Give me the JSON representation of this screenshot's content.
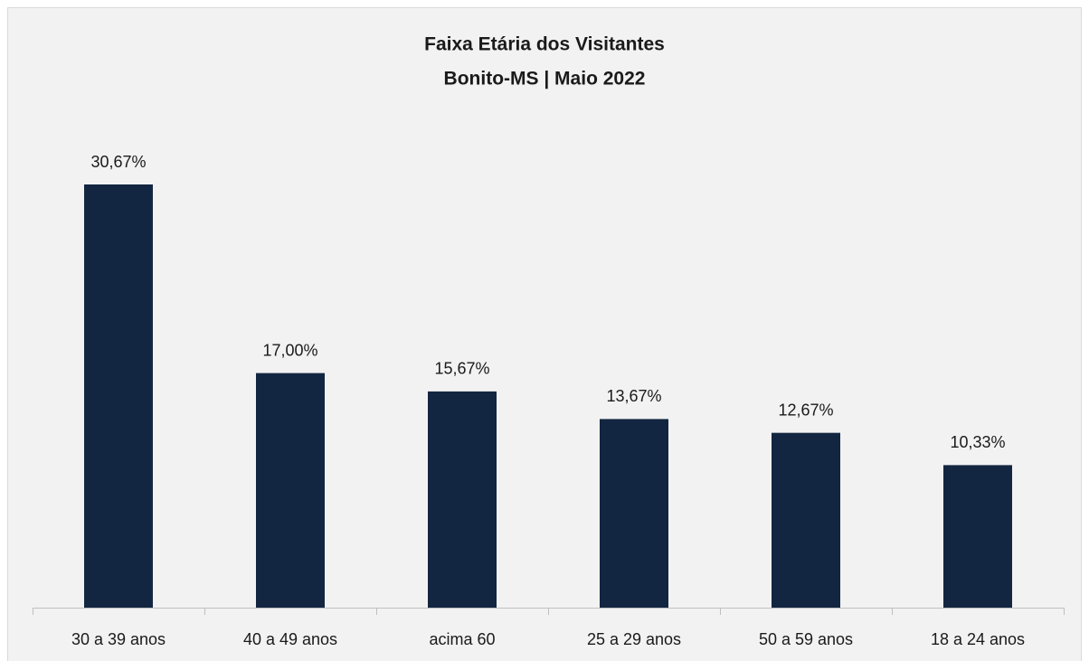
{
  "chart_data": {
    "type": "bar",
    "title": "Faixa Etária dos Visitantes",
    "subtitle": "Bonito-MS | Maio 2022",
    "categories": [
      "30 a 39 anos",
      "40 a 49 anos",
      "acima 60",
      "25 a 29 anos",
      "50 a 59 anos",
      "18 a 24 anos"
    ],
    "values": [
      30.67,
      17.0,
      15.67,
      13.67,
      12.67,
      10.33
    ],
    "value_labels": [
      "30,67%",
      "17,00%",
      "15,67%",
      "13,67%",
      "12,67%",
      "10,33%"
    ],
    "color": "#132641"
  }
}
